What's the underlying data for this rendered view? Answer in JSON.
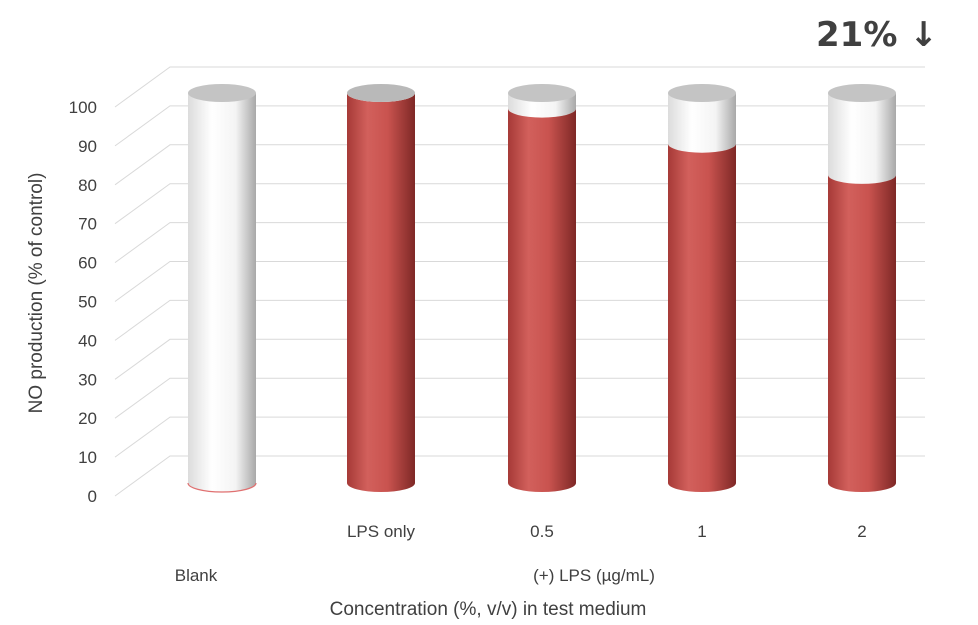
{
  "chart_data": {
    "type": "bar",
    "style": "3d-cylinder",
    "categories": [
      "Blank",
      "LPS only",
      "0.5",
      "1",
      "2"
    ],
    "series": [
      {
        "values": [
          0,
          100,
          96,
          87,
          79
        ],
        "color": "#c0504d"
      }
    ],
    "remainder_color": "#ffffff",
    "ylabel": "NO production (% of control)",
    "xlabel": "Concentration (%, v/v) in test medium",
    "group_label": "(+) LPS (µg/mL)",
    "yticks": [
      "0",
      "10",
      "20",
      "30",
      "40",
      "50",
      "60",
      "70",
      "80",
      "90",
      "100"
    ],
    "ylim": [
      0,
      100
    ],
    "grid": true,
    "annotation": "21% ↓"
  }
}
